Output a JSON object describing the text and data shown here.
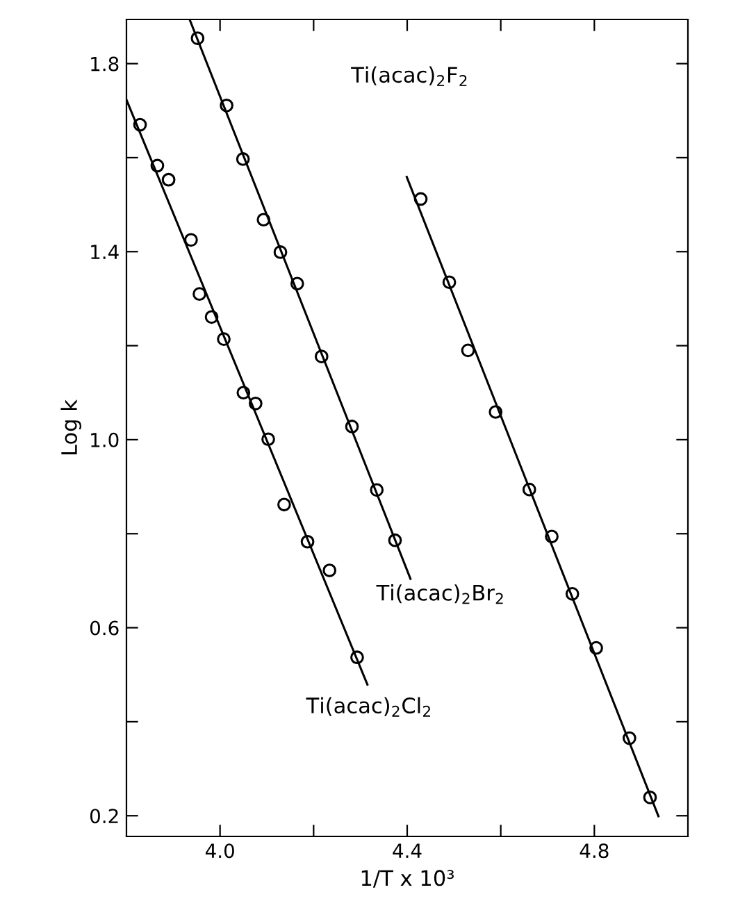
{
  "chart_data": {
    "type": "scatter",
    "xlabel": "1/T x 10³",
    "ylabel": "Log k",
    "marker": "circle",
    "grid": false,
    "legend": false,
    "xlim": [
      3.8,
      5.0
    ],
    "ylim": [
      0.156,
      1.894
    ],
    "xticks": [
      {
        "value": 4.0,
        "label": "4.0"
      },
      {
        "value": 4.2,
        "label": null
      },
      4.4,
      {
        "value": 4.6,
        "label": null
      },
      4.8
    ],
    "yticks": [
      0.2,
      {
        "value": 0.4,
        "label": null
      },
      0.6,
      {
        "value": 0.8,
        "label": null
      },
      {
        "value": 1.0,
        "label": "1.0"
      },
      {
        "value": 1.2,
        "label": null
      },
      1.4,
      {
        "value": 1.6,
        "label": null
      },
      1.8
    ],
    "series": [
      {
        "color": "#000000",
        "x": [
          4.429,
          4.49,
          4.53,
          4.589,
          4.661,
          4.709,
          4.753,
          4.804,
          4.875,
          4.919
        ],
        "values": [
          1.512,
          1.335,
          1.19,
          1.059,
          0.894,
          0.794,
          0.672,
          0.557,
          0.365,
          0.239
        ]
      },
      {
        "type": "line",
        "marker": "none",
        "color": "#000000",
        "line_style": "solid",
        "x": [
          4.399,
          4.937
        ],
        "values": [
          1.559,
          0.199
        ]
      },
      {
        "color": "#000000",
        "x": [
          3.952,
          4.014,
          4.049,
          4.093,
          4.129,
          4.165,
          4.217,
          4.282,
          4.335,
          4.374
        ],
        "values": [
          1.854,
          1.711,
          1.597,
          1.468,
          1.399,
          1.332,
          1.177,
          1.028,
          0.893,
          0.786
        ]
      },
      {
        "type": "line",
        "marker": "none",
        "color": "#000000",
        "line_style": "solid",
        "x": [
          3.935,
          4.407
        ],
        "values": [
          1.894,
          0.704
        ]
      },
      {
        "color": "#000000",
        "x": [
          3.829,
          3.866,
          3.89,
          3.938,
          3.956,
          3.982,
          4.008,
          4.05,
          4.076,
          4.103,
          4.137,
          4.187,
          4.234,
          4.293
        ],
        "values": [
          1.67,
          1.583,
          1.553,
          1.425,
          1.31,
          1.261,
          1.214,
          1.1,
          1.077,
          1.001,
          0.862,
          0.783,
          0.722,
          0.537
        ]
      },
      {
        "type": "line",
        "marker": "none",
        "color": "#000000",
        "line_style": "solid",
        "x": [
          3.8,
          4.315
        ],
        "values": [
          1.723,
          0.479
        ]
      }
    ],
    "annotations": [
      "Ti(acac)$_{2}$F$_{2}$",
      "Ti(acac)$_{2}$Br$_{2}$",
      "Ti(acac)$_{2}$Cl$_{2}$"
    ]
  }
}
